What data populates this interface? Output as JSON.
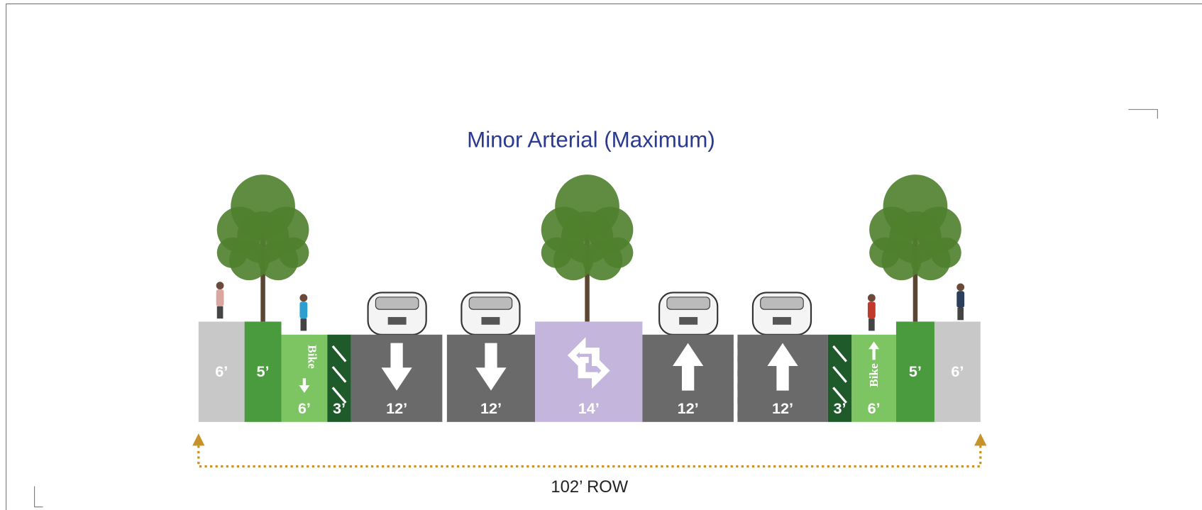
{
  "title": "Minor Arterial (Maximum)",
  "segments": [
    {
      "width": "6’"
    },
    {
      "width": "5’"
    },
    {
      "width": "6’",
      "label": "Bike"
    },
    {
      "width": "3’"
    },
    {
      "width": "12’"
    },
    {
      "width": "12’"
    },
    {
      "width": "14’"
    },
    {
      "width": "12’"
    },
    {
      "width": "12’"
    },
    {
      "width": "3’"
    },
    {
      "width": "6’",
      "label": "Bike"
    },
    {
      "width": "5’"
    },
    {
      "width": "6’"
    }
  ],
  "row_label": "102’ ROW"
}
